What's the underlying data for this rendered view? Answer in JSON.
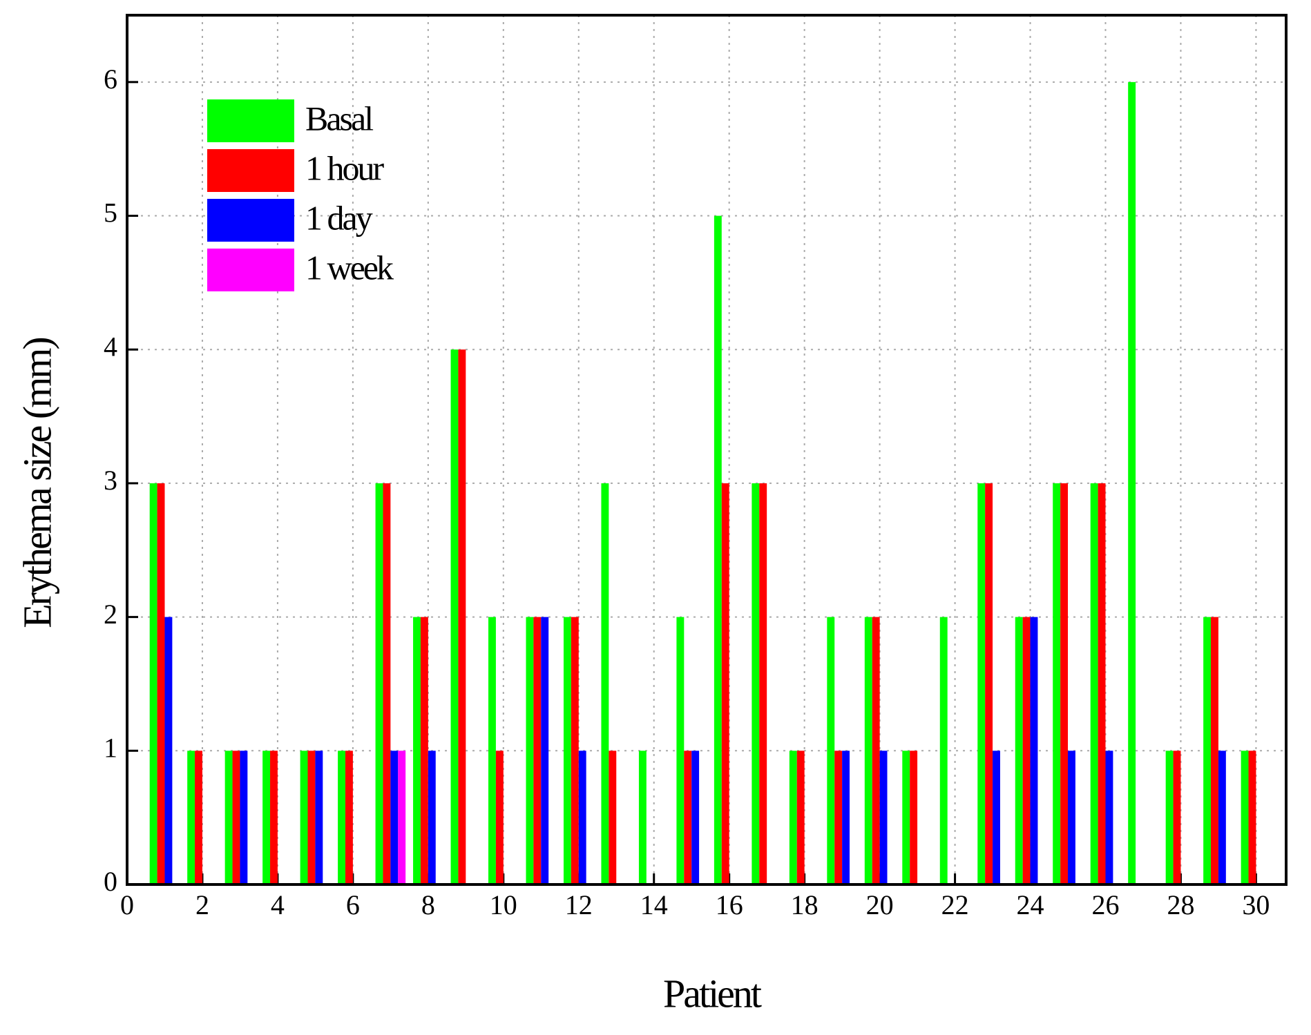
{
  "chart_data": {
    "type": "bar",
    "x_label": "Patient",
    "y_label": "Erythema size (mm)",
    "x": [
      1,
      2,
      3,
      4,
      5,
      6,
      7,
      8,
      9,
      10,
      11,
      12,
      13,
      14,
      15,
      16,
      17,
      18,
      19,
      20,
      21,
      22,
      23,
      24,
      25,
      26,
      27,
      28,
      29,
      30
    ],
    "series": [
      {
        "name": "Basal",
        "color": "#00ff00",
        "values": [
          3,
          1,
          1,
          1,
          1,
          1,
          3,
          2,
          4,
          2,
          2,
          2,
          3,
          1,
          2,
          5,
          3,
          1,
          2,
          2,
          1,
          2,
          3,
          2,
          3,
          3,
          6,
          1,
          2,
          1
        ]
      },
      {
        "name": "1 hour",
        "color": "#ff0000",
        "values": [
          3,
          1,
          1,
          1,
          1,
          1,
          3,
          2,
          4,
          1,
          2,
          2,
          1,
          0,
          1,
          3,
          3,
          1,
          1,
          2,
          1,
          0,
          3,
          2,
          3,
          3,
          0,
          1,
          2,
          1
        ]
      },
      {
        "name": "1 day",
        "color": "#0000ff",
        "values": [
          2,
          0,
          1,
          0,
          1,
          0,
          1,
          1,
          0,
          0,
          2,
          1,
          0,
          0,
          1,
          0,
          0,
          0,
          1,
          1,
          0,
          0,
          1,
          2,
          1,
          1,
          0,
          0,
          1,
          0
        ]
      },
      {
        "name": "1 week",
        "color": "#ff00ff",
        "values": [
          0,
          0,
          0,
          0,
          0,
          0,
          1,
          0,
          0,
          0,
          0,
          0,
          0,
          0,
          0,
          0,
          0,
          0,
          0,
          0,
          0,
          0,
          0,
          0,
          0,
          0,
          0,
          0,
          0,
          0
        ]
      }
    ],
    "xlim": [
      0,
      30.8
    ],
    "ylim": [
      0,
      6.5
    ],
    "xticks": [
      0,
      2,
      4,
      6,
      8,
      10,
      12,
      14,
      16,
      18,
      20,
      22,
      24,
      26,
      28,
      30
    ],
    "yticks": [
      0,
      1,
      2,
      3,
      4,
      5,
      6
    ],
    "grid": true,
    "legend": "upper left"
  }
}
